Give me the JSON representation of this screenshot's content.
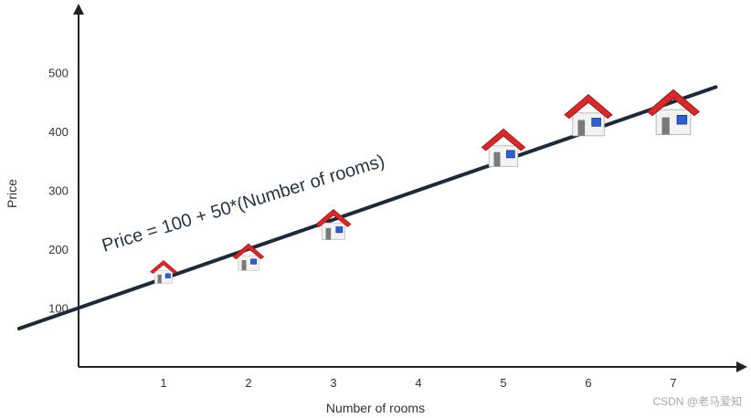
{
  "chart_data": {
    "type": "scatter",
    "xlabel": "Number of rooms",
    "ylabel": "Price",
    "x_ticks": [
      1,
      2,
      3,
      4,
      5,
      6,
      7
    ],
    "y_ticks": [
      100,
      200,
      300,
      400,
      500
    ],
    "xlim": [
      0,
      7.5
    ],
    "ylim": [
      0,
      550
    ],
    "grid": false,
    "points": [
      {
        "x": 1,
        "y": 160
      },
      {
        "x": 2,
        "y": 185
      },
      {
        "x": 3,
        "y": 240
      },
      {
        "x": 5,
        "y": 370
      },
      {
        "x": 6,
        "y": 425
      },
      {
        "x": 7,
        "y": 430
      }
    ],
    "regression": {
      "intercept": 100,
      "slope": 50,
      "x_range": [
        -0.7,
        7.5
      ]
    },
    "annotation": "Price = 100 + 50*(Number of rooms)",
    "marker_icon": "house-icon",
    "colors": {
      "axis": "#222222",
      "line": "#1e2a38",
      "roof": "#d42a2a",
      "wall": "#f3f3f3",
      "window": "#2f5fd0",
      "door": "#7a7a7a"
    }
  },
  "watermark": "CSDN @老马爱知"
}
